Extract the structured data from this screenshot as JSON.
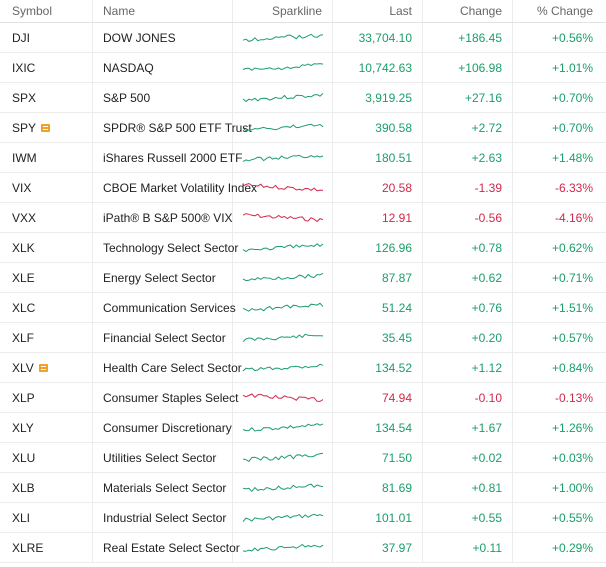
{
  "headers": {
    "symbol": "Symbol",
    "name": "Name",
    "sparkline": "Sparkline",
    "last": "Last",
    "change": "Change",
    "pct_change": "% Change"
  },
  "colors": {
    "positive": "#1b9e6a",
    "negative": "#d0294b",
    "note_icon": "#f0a02a"
  },
  "rows": [
    {
      "symbol": "DJI",
      "name": "DOW JONES",
      "last": "33,704.10",
      "change": "+186.45",
      "pct": "+0.56%",
      "dir": "up",
      "note": false
    },
    {
      "symbol": "IXIC",
      "name": "NASDAQ",
      "last": "10,742.63",
      "change": "+106.98",
      "pct": "+1.01%",
      "dir": "up",
      "note": false
    },
    {
      "symbol": "SPX",
      "name": "S&P 500",
      "last": "3,919.25",
      "change": "+27.16",
      "pct": "+0.70%",
      "dir": "up",
      "note": false
    },
    {
      "symbol": "SPY",
      "name": "SPDR® S&P 500 ETF Trust",
      "last": "390.58",
      "change": "+2.72",
      "pct": "+0.70%",
      "dir": "up",
      "note": true
    },
    {
      "symbol": "IWM",
      "name": "iShares Russell 2000 ETF",
      "last": "180.51",
      "change": "+2.63",
      "pct": "+1.48%",
      "dir": "up",
      "note": false
    },
    {
      "symbol": "VIX",
      "name": "CBOE Market Volatility Index",
      "last": "20.58",
      "change": "-1.39",
      "pct": "-6.33%",
      "dir": "down",
      "note": false
    },
    {
      "symbol": "VXX",
      "name": "iPath® B S&P 500® VIX",
      "last": "12.91",
      "change": "-0.56",
      "pct": "-4.16%",
      "dir": "down",
      "note": false
    },
    {
      "symbol": "XLK",
      "name": "Technology Select Sector",
      "last": "126.96",
      "change": "+0.78",
      "pct": "+0.62%",
      "dir": "up",
      "note": false
    },
    {
      "symbol": "XLE",
      "name": "Energy Select Sector",
      "last": "87.87",
      "change": "+0.62",
      "pct": "+0.71%",
      "dir": "up",
      "note": false
    },
    {
      "symbol": "XLC",
      "name": "Communication Services",
      "last": "51.24",
      "change": "+0.76",
      "pct": "+1.51%",
      "dir": "up",
      "note": false
    },
    {
      "symbol": "XLF",
      "name": "Financial Select Sector",
      "last": "35.45",
      "change": "+0.20",
      "pct": "+0.57%",
      "dir": "up",
      "note": false
    },
    {
      "symbol": "XLV",
      "name": "Health Care Select Sector",
      "last": "134.52",
      "change": "+1.12",
      "pct": "+0.84%",
      "dir": "up",
      "note": true
    },
    {
      "symbol": "XLP",
      "name": "Consumer Staples Select",
      "last": "74.94",
      "change": "-0.10",
      "pct": "-0.13%",
      "dir": "down",
      "note": false
    },
    {
      "symbol": "XLY",
      "name": "Consumer Discretionary",
      "last": "134.54",
      "change": "+1.67",
      "pct": "+1.26%",
      "dir": "up",
      "note": false
    },
    {
      "symbol": "XLU",
      "name": "Utilities Select Sector",
      "last": "71.50",
      "change": "+0.02",
      "pct": "+0.03%",
      "dir": "up",
      "note": false
    },
    {
      "symbol": "XLB",
      "name": "Materials Select Sector",
      "last": "81.69",
      "change": "+0.81",
      "pct": "+1.00%",
      "dir": "up",
      "note": false
    },
    {
      "symbol": "XLI",
      "name": "Industrial Select Sector",
      "last": "101.01",
      "change": "+0.55",
      "pct": "+0.55%",
      "dir": "up",
      "note": false
    },
    {
      "symbol": "XLRE",
      "name": "Real Estate Select Sector",
      "last": "37.97",
      "change": "+0.11",
      "pct": "+0.29%",
      "dir": "up",
      "note": false
    }
  ]
}
